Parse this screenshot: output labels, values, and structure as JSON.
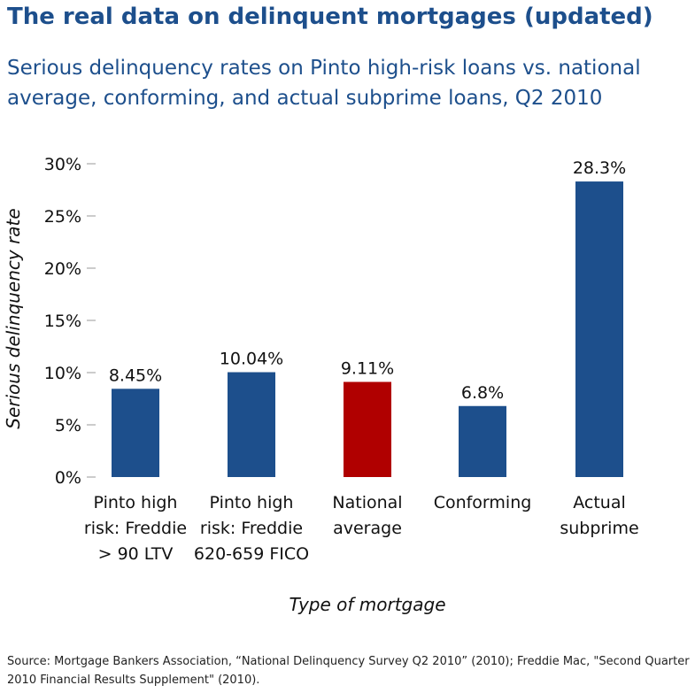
{
  "header": {
    "title": "The real data on delinquent mortgages (updated)",
    "subtitle": "Serious delinquency rates on Pinto high-risk loans vs. national average, conforming, and actual subprime loans, Q2 2010"
  },
  "source_note": "Source: Mortgage Bankers Association, “National Delinquency Survey Q2 2010” (2010); Freddie Mac, \"Second Quarter 2010 Financial Results Supplement\" (2010).",
  "colors": {
    "title": "#1d4f8c",
    "bar_default": "#1d4f8c",
    "bar_highlight": "#b00000",
    "tick": "#999999"
  },
  "chart_data": {
    "type": "bar",
    "title": "The real data on delinquent mortgages (updated)",
    "subtitle": "Serious delinquency rates on Pinto high-risk loans vs. national average, conforming, and actual subprime loans, Q2 2010",
    "xlabel": "Type of mortgage",
    "ylabel": "Serious delinquency rate",
    "ylim": [
      0,
      30
    ],
    "yticks": [
      "0%",
      "5%",
      "10%",
      "15%",
      "20%",
      "25%",
      "30%"
    ],
    "grid": false,
    "categories": [
      [
        "Pinto high",
        "risk: Freddie",
        "> 90 LTV"
      ],
      [
        "Pinto high",
        "risk: Freddie",
        "620-659 FICO"
      ],
      [
        "National",
        "average"
      ],
      [
        "Conforming"
      ],
      [
        "Actual",
        "subprime"
      ]
    ],
    "values": [
      8.45,
      10.04,
      9.11,
      6.8,
      28.3
    ],
    "data_labels": [
      "8.45%",
      "10.04%",
      "9.11%",
      "6.8%",
      "28.3%"
    ],
    "highlight_index": 2
  }
}
